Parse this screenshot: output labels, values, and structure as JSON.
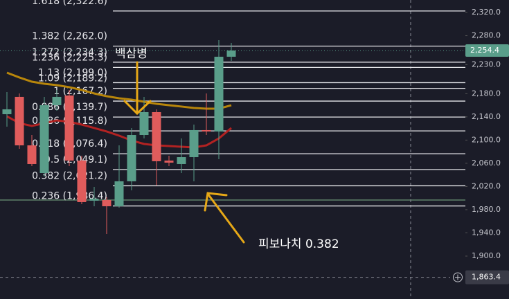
{
  "chart_data": {
    "type": "candlestick",
    "categories": [
      null,
      null,
      null,
      null,
      null,
      null,
      null,
      null,
      null,
      null,
      null,
      null,
      null,
      null,
      null,
      null,
      null,
      null,
      null
    ],
    "open": [
      2144.6,
      2174.5,
      2090.9,
      2043.2,
      2160.1,
      2176.8,
      2064.7,
      1995.5,
      1996.7,
      1985.9,
      2028.9,
      2108.8,
      2148.2,
      2064.7,
      2058.7,
      2070.6,
      2117.2,
      2114.8,
      2243.7
    ],
    "high": [
      2182.8,
      2180.4,
      2108.8,
      2174.5,
      2186.4,
      2186.4,
      2073.0,
      2019.3,
      2001.4,
      2090.9,
      2120.8,
      2174.5,
      2153.0,
      2073.0,
      2102.9,
      2126.7,
      2180.4,
      2272.3,
      2267.5
    ],
    "low": [
      2123.1,
      2084.9,
      2055.1,
      2037.2,
      2150.6,
      2055.1,
      1989.5,
      1985.9,
      1938.2,
      1983.5,
      2013.4,
      2102.9,
      2021.7,
      2055.1,
      2043.2,
      2028.9,
      2108.8,
      2067.1,
      2236.5
    ],
    "close": [
      2153.0,
      2090.9,
      2058.7,
      2160.1,
      2174.5,
      2064.7,
      1993.1,
      1999.0,
      1985.9,
      2028.9,
      2108.8,
      2148.2,
      2063.5,
      2061.1,
      2070.6,
      2117.2,
      2114.8,
      2243.7,
      2254.4
    ],
    "up_color": "#5a9e8a",
    "down_color": "#e05c5c",
    "moving_averages": [
      {
        "color": "#b8860b",
        "values": [
          2216.2,
          2207.9,
          2200.7,
          2197.1,
          2194.7,
          2191.2,
          2186.4,
          2180.4,
          2175.6,
          2172.1,
          2169.7,
          2166.1,
          2162.5,
          2160.1,
          2157.8,
          2155.4,
          2154.2,
          2154.2,
          2160.1
        ]
      },
      {
        "color": "#b22222",
        "values": [
          2141.0,
          2129.1,
          2124.3,
          2129.1,
          2133.9,
          2131.5,
          2126.7,
          2120.8,
          2114.8,
          2107.6,
          2099.3,
          2093.3,
          2090.9,
          2089.7,
          2088.5,
          2087.3,
          2090.9,
          2102.9,
          2120.8
        ]
      }
    ],
    "fib_levels": [
      {
        "value": 2322.6,
        "label": "1.618 (2,322.6)"
      },
      {
        "value": 2262.0,
        "label": "1.382 (2,262.0)"
      },
      {
        "value": 2234.3,
        "label": "1.272 (2,234.3)"
      },
      {
        "value": 2225.3,
        "label": "1.236 (2,225.3)"
      },
      {
        "value": 2199.0,
        "label": "1.13 (2,199.0)"
      },
      {
        "value": 2189.2,
        "label": "1.09 (2,189.2)"
      },
      {
        "value": 2167.2,
        "label": "1 (2,167.2)"
      },
      {
        "value": 2139.7,
        "label": "0.886 (2,139.7)"
      },
      {
        "value": 2115.8,
        "label": "0.786 (2,115.8)"
      },
      {
        "value": 2076.4,
        "label": "0.618 (2,076.4)"
      },
      {
        "value": 2049.1,
        "label": "0.5 (2,049.1)"
      },
      {
        "value": 2021.2,
        "label": "0.382 (2,021.2)"
      },
      {
        "value": 1986.4,
        "label": "0.236 (1,986.4)"
      }
    ],
    "ylim": [
      1826,
      2341.5
    ],
    "yticks": [
      {
        "value": 1900,
        "label": "1,900.0"
      },
      {
        "value": 1940,
        "label": "1,940.0"
      },
      {
        "value": 1980,
        "label": "1,980.0"
      },
      {
        "value": 2020,
        "label": "2,020.0"
      },
      {
        "value": 2060,
        "label": "2,060.0"
      },
      {
        "value": 2100,
        "label": "2,100.0"
      },
      {
        "value": 2140,
        "label": "2,140.0"
      },
      {
        "value": 2180,
        "label": "2,180.0"
      },
      {
        "value": 2230,
        "label": "2,230.0"
      },
      {
        "value": 2280,
        "label": "2,280.0"
      },
      {
        "value": 2320,
        "label": "2,320.0"
      }
    ],
    "last_price": {
      "value": 2254.4,
      "label": "2,254.4"
    },
    "crosshair_price": {
      "value": 1863.4,
      "label": "1,863.4"
    },
    "annotations": [
      "백삼병",
      "피보나치 0.382"
    ]
  }
}
